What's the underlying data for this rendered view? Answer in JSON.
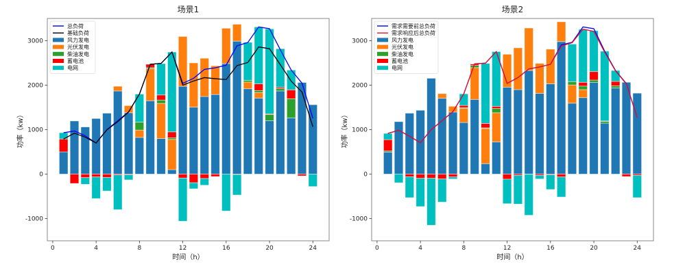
{
  "chart_data": [
    {
      "type": "bar",
      "stacked": true,
      "title": "场景1",
      "xlabel": "时间（h）",
      "ylabel": "功率（kw）",
      "xlim": [
        -0.5,
        25.5
      ],
      "ylim": [
        -1500,
        3500
      ],
      "xticks": [
        0,
        4,
        8,
        12,
        16,
        20,
        24
      ],
      "yticks": [
        -1000,
        0,
        1000,
        2000,
        3000
      ],
      "grid": false,
      "legend_position": "top-left",
      "x": [
        1,
        2,
        3,
        4,
        5,
        6,
        7,
        8,
        9,
        10,
        11,
        12,
        13,
        14,
        15,
        16,
        17,
        18,
        19,
        20,
        21,
        22,
        23,
        24
      ],
      "lines": [
        {
          "name": "总负荷",
          "color": "#0000ff",
          "values": [
            930,
            970,
            860,
            700,
            1000,
            1200,
            1400,
            1800,
            2470,
            2490,
            2745,
            2040,
            2155,
            2355,
            2390,
            2450,
            2885,
            2960,
            3310,
            3270,
            2795,
            2340,
            2045,
            1255
          ]
        },
        {
          "name": "基础负荷",
          "color": "#000000",
          "values": [
            790,
            920,
            830,
            700,
            995,
            1180,
            1395,
            1800,
            2470,
            2490,
            2745,
            2000,
            2095,
            2170,
            2145,
            2125,
            2440,
            2510,
            2860,
            2820,
            2460,
            2090,
            1845,
            1065
          ]
        }
      ],
      "series": [
        {
          "name": "风力发电",
          "color": "#1f77b4",
          "values": [
            500,
            1195,
            1060,
            1250,
            1370,
            1870,
            1380,
            825,
            1650,
            800,
            100,
            1975,
            1505,
            1745,
            1790,
            2485,
            2990,
            1920,
            1710,
            1200,
            1870,
            1265,
            2060,
            1560
          ]
        },
        {
          "name": "光伏发电",
          "color": "#ff7f0e",
          "values": [
            0,
            0,
            0,
            0,
            0,
            105,
            160,
            165,
            720,
            790,
            680,
            1120,
            995,
            860,
            645,
            795,
            380,
            150,
            125,
            0,
            0,
            0,
            0,
            0
          ]
        },
        {
          "name": "柴油发电",
          "color": "#2ca02c",
          "values": [
            0,
            0,
            0,
            0,
            0,
            0,
            0,
            180,
            25,
            75,
            35,
            0,
            0,
            0,
            0,
            0,
            0,
            40,
            45,
            140,
            55,
            430,
            0,
            0
          ]
        },
        {
          "name": "蓄电池",
          "color": "#ff0000",
          "values": [
            290,
            -210,
            -80,
            -65,
            -75,
            -20,
            -15,
            0,
            75,
            115,
            135,
            -90,
            -195,
            -100,
            -55,
            0,
            -10,
            0,
            150,
            15,
            30,
            200,
            -40,
            0
          ]
        },
        {
          "name": "电网",
          "color": "#00bfbf",
          "values": [
            140,
            0,
            -150,
            -485,
            -305,
            -780,
            -115,
            630,
            0,
            705,
            1795,
            -970,
            -135,
            -150,
            0,
            -830,
            -460,
            855,
            1280,
            1910,
            865,
            445,
            0,
            -280
          ]
        }
      ]
    },
    {
      "type": "bar",
      "stacked": true,
      "title": "场景2",
      "xlabel": "时间（h）",
      "ylabel": "功率（kw）",
      "xlim": [
        -0.5,
        25.5
      ],
      "ylim": [
        -1500,
        3500
      ],
      "xticks": [
        0,
        4,
        8,
        12,
        16,
        20,
        24
      ],
      "yticks": [
        -1000,
        0,
        1000,
        2000,
        3000
      ],
      "grid": false,
      "legend_position": "top-left",
      "x": [
        1,
        2,
        3,
        4,
        5,
        6,
        7,
        8,
        9,
        10,
        11,
        12,
        13,
        14,
        15,
        16,
        17,
        18,
        19,
        20,
        21,
        22,
        23,
        24
      ],
      "lines": [
        {
          "name": "需求需要前总负荷",
          "color": "#0000ff",
          "values": [
            915,
            985,
            850,
            705,
            1000,
            1200,
            1405,
            1805,
            2480,
            2495,
            2755,
            2040,
            2170,
            2365,
            2410,
            2470,
            2905,
            2965,
            3310,
            3270,
            2765,
            2330,
            2035,
            1270
          ]
        },
        {
          "name": "需求响应后总负荷",
          "color": "#e8102a",
          "values": [
            915,
            985,
            850,
            705,
            1000,
            1200,
            1405,
            1805,
            2480,
            2495,
            2755,
            2040,
            2170,
            2365,
            2410,
            2470,
            2880,
            2955,
            3260,
            3210,
            2740,
            2320,
            2025,
            1270
          ]
        }
      ],
      "series": [
        {
          "name": "风力发电",
          "color": "#1f77b4",
          "values": [
            495,
            1180,
            1370,
            1435,
            2155,
            1705,
            1395,
            1160,
            1680,
            235,
            725,
            1955,
            1900,
            2330,
            1815,
            2030,
            2980,
            1595,
            1720,
            2060,
            1145,
            1935,
            2065,
            1820
          ]
        },
        {
          "name": "光伏发电",
          "color": "#ff7f0e",
          "values": [
            0,
            0,
            0,
            0,
            0,
            105,
            130,
            315,
            715,
            790,
            655,
            740,
            940,
            955,
            675,
            780,
            445,
            410,
            180,
            0,
            0,
            0,
            0,
            0
          ]
        },
        {
          "name": "柴油发电",
          "color": "#2ca02c",
          "values": [
            25,
            0,
            0,
            0,
            0,
            0,
            0,
            20,
            50,
            15,
            95,
            0,
            0,
            0,
            0,
            0,
            0,
            75,
            80,
            55,
            40,
            50,
            0,
            0
          ]
        },
        {
          "name": "蓄电池",
          "color": "#ff0000",
          "values": [
            255,
            0,
            -60,
            -95,
            -95,
            -110,
            -65,
            50,
            30,
            100,
            50,
            -115,
            -30,
            -5,
            -30,
            -15,
            -65,
            0,
            85,
            190,
            10,
            100,
            -55,
            -30
          ]
        },
        {
          "name": "电网",
          "color": "#00bfbf",
          "values": [
            140,
            -195,
            -470,
            -635,
            -1055,
            -520,
            -45,
            260,
            0,
            1350,
            1230,
            -550,
            -645,
            -920,
            -80,
            -330,
            -450,
            845,
            1190,
            920,
            1570,
            245,
            0,
            -500
          ]
        }
      ]
    }
  ]
}
